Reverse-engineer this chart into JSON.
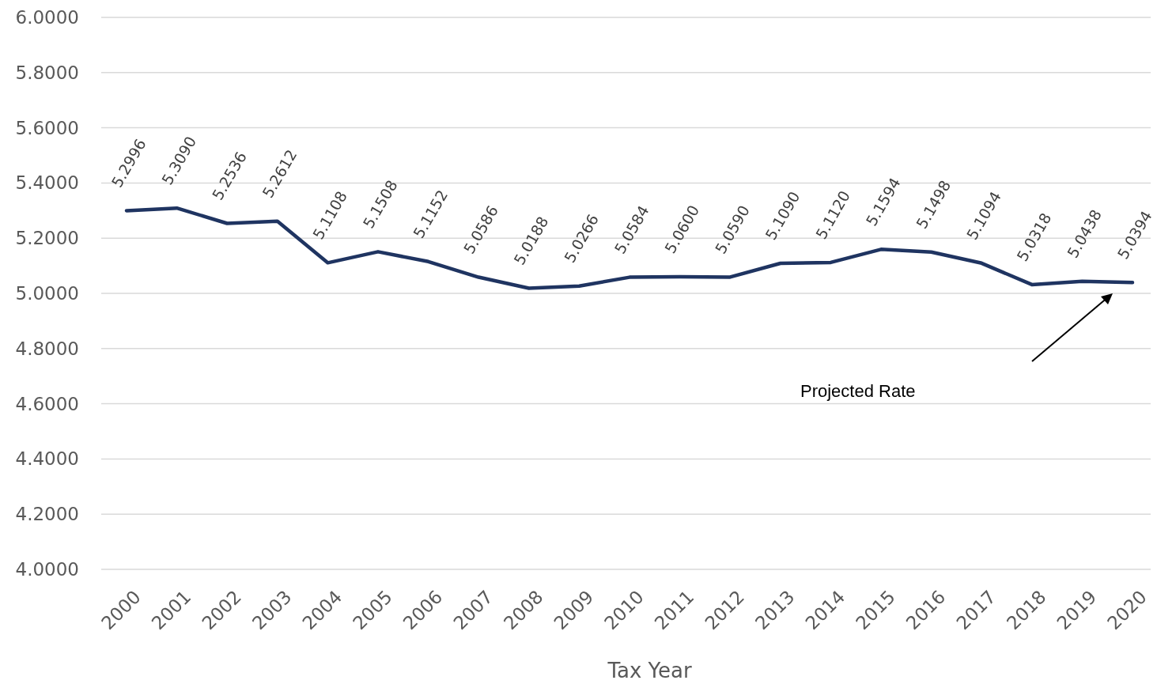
{
  "chart_data": {
    "type": "line",
    "xlabel": "Tax Year",
    "categories": [
      "2000",
      "2001",
      "2002",
      "2003",
      "2004",
      "2005",
      "2006",
      "2007",
      "2008",
      "2009",
      "2010",
      "2011",
      "2012",
      "2013",
      "2014",
      "2015",
      "2016",
      "2017",
      "2018",
      "2019",
      "2020"
    ],
    "series": [
      {
        "color": "#1f3461",
        "values": [
          5.2996,
          5.309,
          5.2536,
          5.2612,
          5.1108,
          5.1508,
          5.1152,
          5.0586,
          5.0188,
          5.0266,
          5.0584,
          5.06,
          5.059,
          5.109,
          5.112,
          5.1594,
          5.1498,
          5.1094,
          5.0318,
          5.0438,
          5.0394
        ],
        "value_labels": [
          "5.2996",
          "5.3090",
          "5.2536",
          "5.2612",
          "5.1108",
          "5.1508",
          "5.1152",
          "5.0586",
          "5.0188",
          "5.0266",
          "5.0584",
          "5.0600",
          "5.0590",
          "5.1090",
          "5.1120",
          "5.1594",
          "5.1498",
          "5.1094",
          "5.0318",
          "5.0438",
          "5.0394"
        ]
      }
    ],
    "ylim": [
      4,
      6
    ],
    "yticks": [
      {
        "value": 4,
        "label": "4.0000"
      },
      {
        "value": 4.2,
        "label": "4.2000"
      },
      {
        "value": 4.4,
        "label": "4.4000"
      },
      {
        "value": 4.6,
        "label": "4.6000"
      },
      {
        "value": 4.8,
        "label": "4.8000"
      },
      {
        "value": 5,
        "label": "5.0000"
      },
      {
        "value": 5.2,
        "label": "5.2000"
      },
      {
        "value": 5.4,
        "label": "5.4000"
      },
      {
        "value": 5.6,
        "label": "5.6000"
      },
      {
        "value": 5.8,
        "label": "5.8000"
      },
      {
        "value": 6,
        "label": "6.0000"
      }
    ],
    "grid": "y",
    "marker": "none",
    "line_style": "solid",
    "annotations": [
      "Projected Rate"
    ]
  }
}
